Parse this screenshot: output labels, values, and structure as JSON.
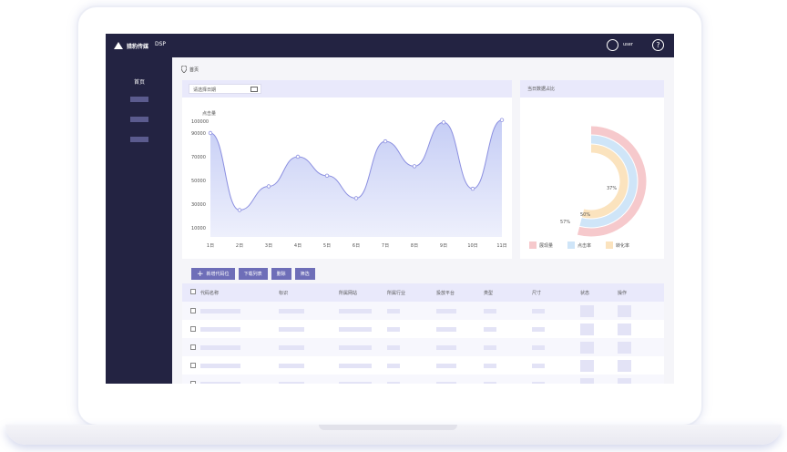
{
  "header": {
    "logo_text": "猎豹传媒",
    "product": "DSP",
    "user": "user",
    "help": "?"
  },
  "sidebar": {
    "home": "首页"
  },
  "breadcrumb": {
    "home": "首页"
  },
  "chart_panel": {
    "date_placeholder": "请选择日期",
    "chart_data": {
      "type": "area",
      "ylabel": "点击量",
      "categories": [
        "1日",
        "2日",
        "3日",
        "4日",
        "5日",
        "6日",
        "7日",
        "8日",
        "9日",
        "10日",
        "11日"
      ],
      "y_ticks": [
        "100000",
        "90000",
        "70000",
        "50000",
        "30000",
        "10000"
      ],
      "ylim": [
        10000,
        100000
      ],
      "values": [
        90000,
        25000,
        45000,
        70000,
        54000,
        35000,
        83000,
        62000,
        99000,
        43000,
        101000
      ],
      "accent": "#8b8fe0"
    }
  },
  "donut_panel": {
    "title": "当日数据占比",
    "chart_data": {
      "type": "pie",
      "series": [
        {
          "name": "展现量",
          "value": 57,
          "label": "57%",
          "color": "#f6c9cc"
        },
        {
          "name": "点击率",
          "value": 50,
          "label": "50%",
          "color": "#cfe5f8"
        },
        {
          "name": "转化率",
          "value": 37,
          "label": "37%",
          "color": "#fbe3be"
        }
      ]
    }
  },
  "toolbar": {
    "add": "新增代码位",
    "download": "下载列表",
    "delete": "删除",
    "filter": "筛选"
  },
  "table": {
    "columns": [
      "代码名称",
      "标识",
      "所属网站",
      "所属行业",
      "投放平台",
      "类型",
      "尺寸",
      "状态",
      "操作"
    ],
    "row_count": 5
  },
  "colors": {
    "nav": "#232342",
    "head": "#e9e9fb",
    "button": "#6e6eb8"
  }
}
